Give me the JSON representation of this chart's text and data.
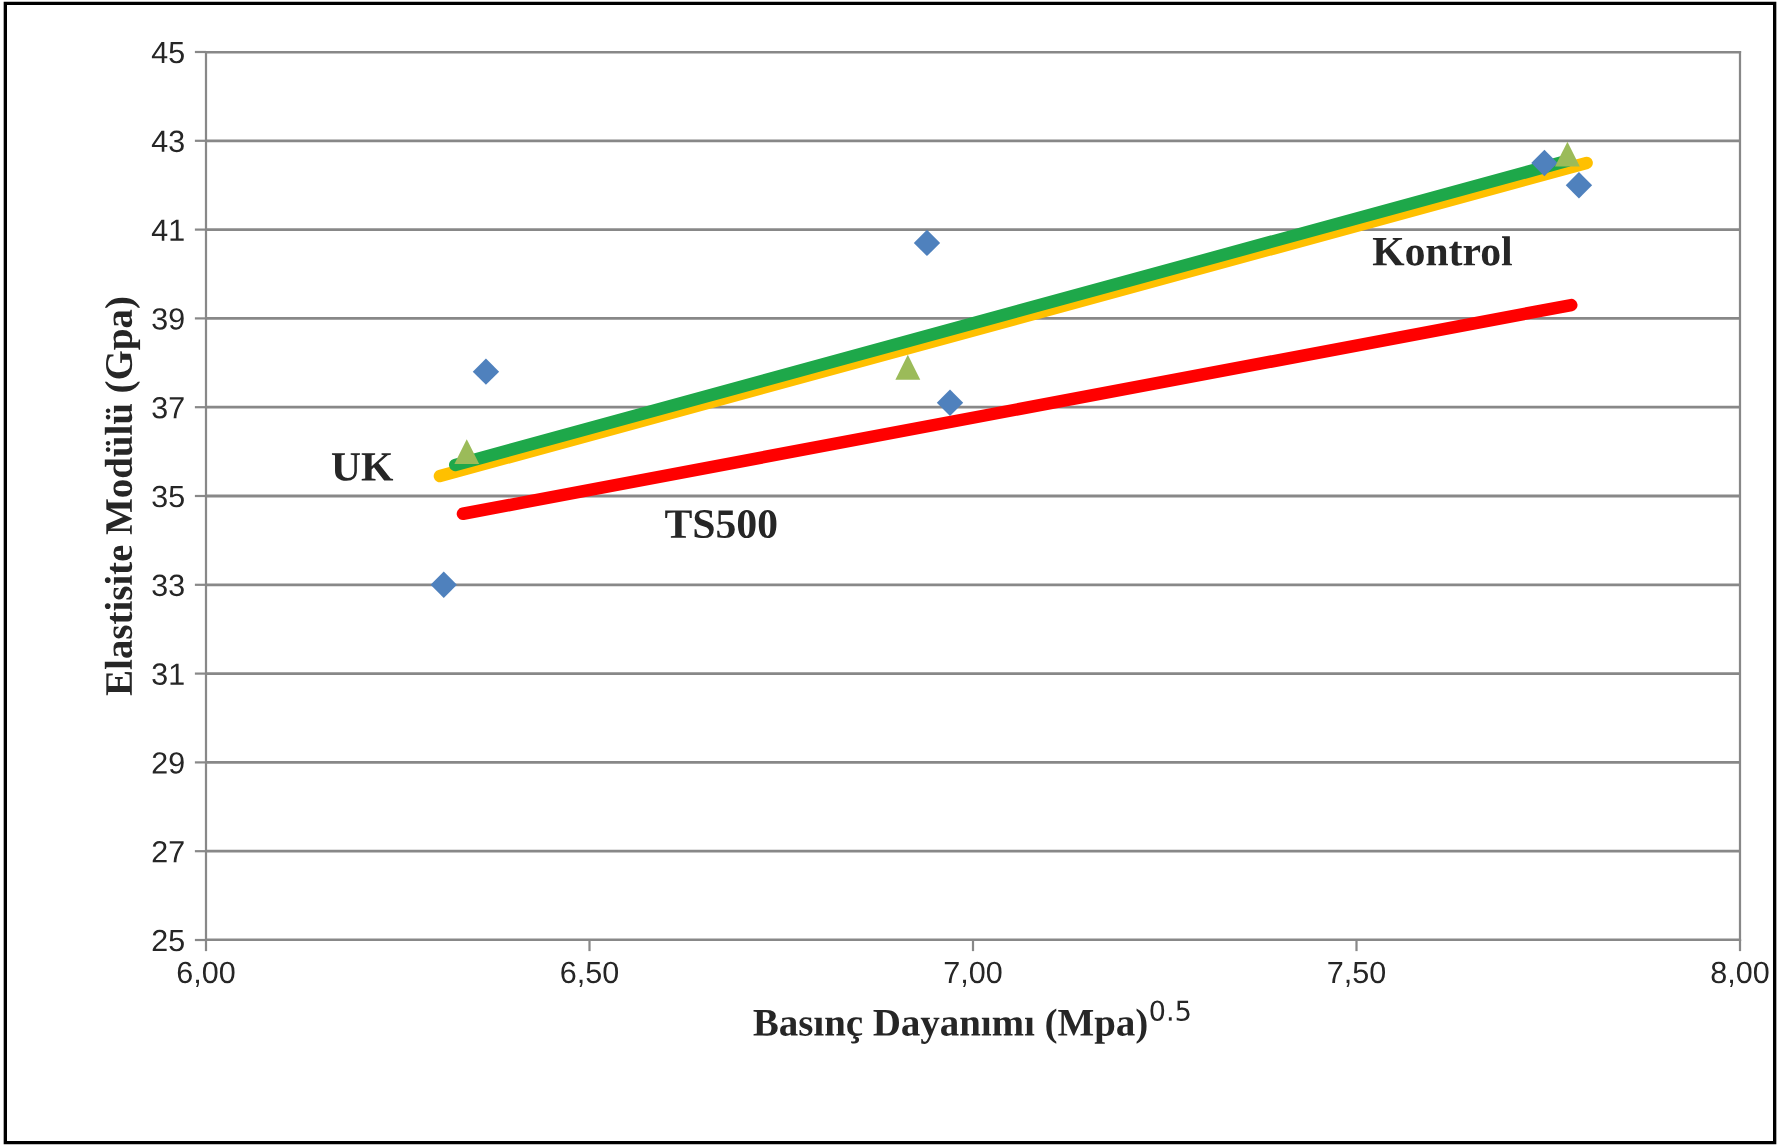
{
  "chart_data": {
    "type": "scatter",
    "xlabel": "Basınç Dayanımı (Mpa)$^{0.5}$",
    "ylabel": "Elastisite Modülü (Gpa)",
    "xlim": [
      6.0,
      8.0
    ],
    "xticks": [
      {
        "value": 6.0,
        "label": "6,00"
      },
      {
        "value": 6.5,
        "label": "6,50"
      },
      {
        "value": 7.0,
        "label": "7,00"
      },
      {
        "value": 7.5,
        "label": "7,50"
      },
      {
        "value": 8.0,
        "label": "8,00"
      }
    ],
    "ylim": [
      25,
      45
    ],
    "yticks": [
      25,
      27,
      29,
      31,
      33,
      35,
      37,
      39,
      41,
      43,
      45
    ],
    "grid": "y",
    "series": [
      {
        "marker": "diamond",
        "color": "#4f81bd",
        "x": [
          6.31,
          6.365,
          6.94,
          6.97,
          7.745,
          7.79
        ],
        "values": [
          33.0,
          37.8,
          40.7,
          37.1,
          42.5,
          42.0
        ]
      },
      {
        "marker": "triangle",
        "color": "#9bbb59",
        "x": [
          6.34,
          6.915,
          7.775
        ],
        "values": [
          36.0,
          37.9,
          42.7
        ]
      },
      {
        "type": "line",
        "name": "UK",
        "color": "#ffc000",
        "x": [
          6.305,
          7.8
        ],
        "values": [
          35.45,
          42.5
        ]
      },
      {
        "type": "line",
        "name": "Kontrol",
        "color": "#1ea84a",
        "x": [
          6.325,
          7.775
        ],
        "values": [
          35.7,
          42.55
        ]
      },
      {
        "type": "line",
        "name": "TS500",
        "color": "#ff0000",
        "x": [
          6.335,
          7.78
        ],
        "values": [
          34.6,
          39.3
        ]
      }
    ]
  }
}
